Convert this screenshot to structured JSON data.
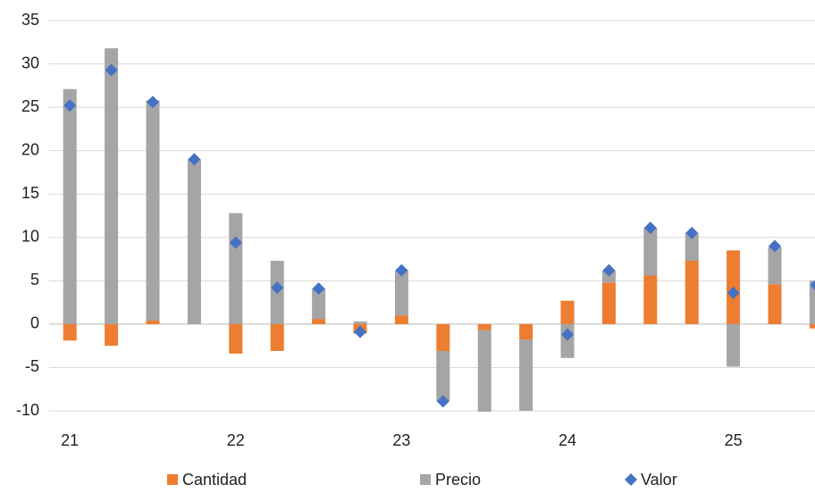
{
  "chart_data": {
    "type": "bar",
    "stacked": true,
    "categories": [
      "21",
      null,
      null,
      null,
      "22",
      null,
      null,
      null,
      "23",
      null,
      null,
      null,
      "24",
      null,
      null,
      null,
      "25",
      null,
      null
    ],
    "series": [
      {
        "name": "Cantidad",
        "type": "bar",
        "color": "#ed7d31",
        "values": [
          -1.9,
          -2.5,
          0.4,
          0,
          -3.4,
          -3.1,
          0.6,
          -1.1,
          1.0,
          -3.1,
          -0.7,
          -1.8,
          2.7,
          4.8,
          5.6,
          7.3,
          8.5,
          4.6,
          -0.5
        ]
      },
      {
        "name": "Precio",
        "type": "bar",
        "color": "#a5a5a5",
        "values": [
          27.1,
          31.8,
          25.4,
          19.0,
          12.8,
          7.3,
          3.5,
          0.3,
          5.2,
          -5.8,
          -9.5,
          -8.2,
          -3.9,
          1.4,
          5.5,
          3.2,
          -4.9,
          4.3,
          5.0
        ]
      },
      {
        "name": "Valor",
        "type": "marker",
        "color": "#4472c4",
        "values": [
          25.2,
          29.3,
          25.6,
          19.0,
          9.4,
          4.2,
          4.1,
          -0.9,
          6.2,
          -8.9,
          null,
          null,
          -1.2,
          6.2,
          11.1,
          10.5,
          3.6,
          9.0,
          4.5
        ]
      }
    ],
    "ylim": [
      -10,
      35
    ],
    "yticks": [
      -10,
      -5,
      0,
      5,
      10,
      15,
      20,
      25,
      30,
      35
    ],
    "grid": true,
    "legend": "bottom"
  }
}
